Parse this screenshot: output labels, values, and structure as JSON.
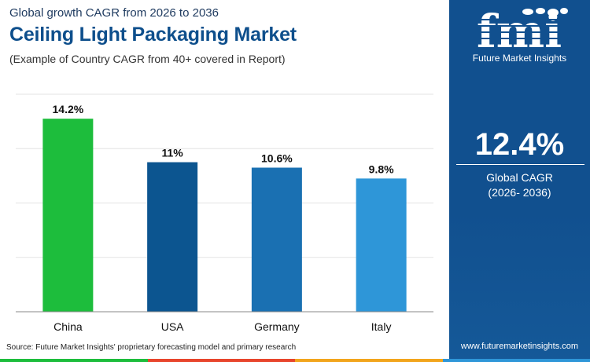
{
  "header": {
    "eyebrow": "Global growth CAGR from 2026 to 2036",
    "title": "Ceiling Light Packaging Market",
    "subtitle": "(Example of Country CAGR from 40+ covered in Report)"
  },
  "chart_data": {
    "type": "bar",
    "categories": [
      "China",
      "USA",
      "Germany",
      "Italy"
    ],
    "values": [
      14.2,
      11,
      10.6,
      9.8
    ],
    "data_labels": [
      "14.2%",
      "11%",
      "10.6%",
      "9.8%"
    ],
    "bar_colors": [
      "#1dbd3c",
      "#0c5590",
      "#1a70b2",
      "#2e96d8"
    ],
    "ylim": [
      0,
      16
    ],
    "grid": true,
    "legend": "none"
  },
  "footer": {
    "source": "Source: Future Market Insights' proprietary forecasting model and primary research"
  },
  "side_panel": {
    "logo_text": "fmi",
    "logo_subtitle": "Future Market Insights",
    "value": "12.4%",
    "label": "Global CAGR",
    "period": "(2026- 2036)",
    "website": "www.futuremarketinsights.com",
    "background_color": "#11508f"
  },
  "bottom_strip_colors": [
    "#1dbd3c",
    "#e8452c",
    "#f2a51c",
    "#2e96d8"
  ]
}
